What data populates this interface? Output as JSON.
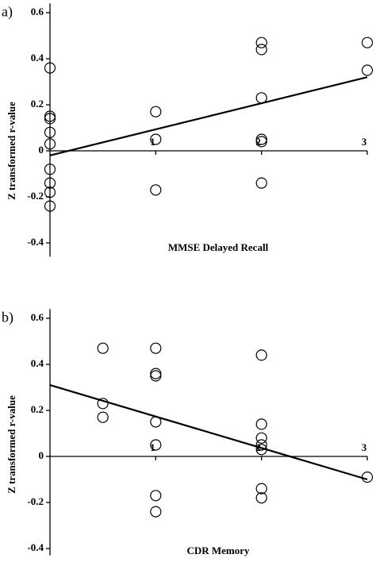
{
  "chart_data": [
    {
      "type": "scatter",
      "panel_label": "a)",
      "y_label": "Z transformed r-value",
      "x_label": "MMSE Delayed Recall",
      "xlim": [
        0,
        3
      ],
      "xticks": [
        1,
        2,
        3
      ],
      "ylim": [
        -0.46,
        0.64
      ],
      "yticks": [
        -0.4,
        -0.2,
        0,
        0.2,
        0.4,
        0.6
      ],
      "color": "#000000",
      "x": [
        0,
        0,
        0,
        0,
        0,
        0,
        0,
        0,
        0,
        1,
        1,
        1,
        2,
        2,
        2,
        2,
        2,
        2,
        3,
        3
      ],
      "y": [
        0.36,
        0.15,
        0.14,
        0.08,
        0.03,
        -0.08,
        -0.14,
        -0.18,
        -0.24,
        0.17,
        0.05,
        -0.17,
        0.47,
        0.44,
        0.23,
        0.05,
        0.04,
        -0.14,
        0.47,
        0.35
      ],
      "trend": {
        "x": [
          0,
          3
        ],
        "y": [
          -0.02,
          0.32
        ]
      }
    },
    {
      "type": "scatter",
      "panel_label": "b)",
      "y_label": "Z transformed r-value",
      "x_label": "CDR Memory",
      "xlim": [
        0,
        3
      ],
      "xticks": [
        1,
        2,
        3
      ],
      "ylim": [
        -0.43,
        0.64
      ],
      "yticks": [
        -0.4,
        -0.2,
        0,
        0.2,
        0.4,
        0.6
      ],
      "color": "#000000",
      "x": [
        0.5,
        0.5,
        0.5,
        1,
        1,
        1,
        1,
        1,
        1,
        1,
        2,
        2,
        2,
        2,
        2,
        2,
        2,
        3
      ],
      "y": [
        0.47,
        0.23,
        0.17,
        0.47,
        0.36,
        0.35,
        0.15,
        0.05,
        -0.17,
        -0.24,
        0.44,
        0.14,
        0.08,
        0.05,
        0.03,
        -0.14,
        -0.18,
        -0.09
      ],
      "trend": {
        "x": [
          0,
          3
        ],
        "y": [
          0.31,
          -0.1
        ]
      }
    }
  ]
}
